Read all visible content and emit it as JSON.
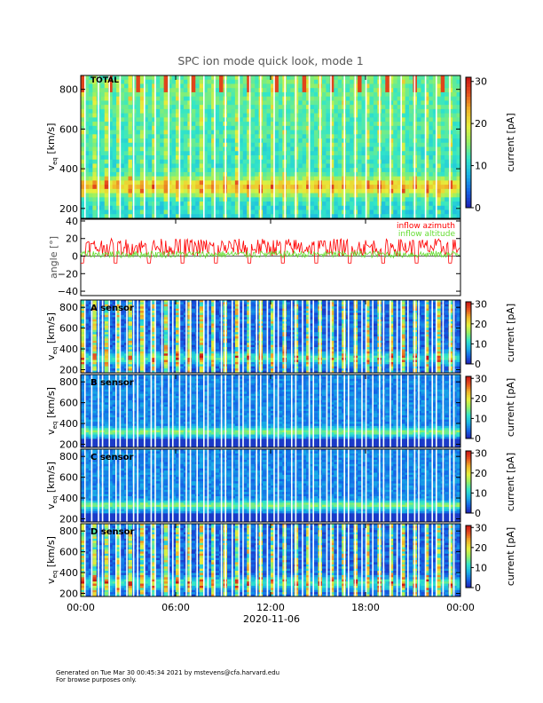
{
  "page": {
    "title": "SPC ion mode quick look, mode 1",
    "footer_line1": "Generated on Tue Mar 30 00:45:34 2021 by mstevens@cfa.harvard.edu",
    "footer_line2": "For browse purposes only."
  },
  "colorbar": {
    "label": "current [pA]",
    "ticks": [
      "0",
      "10",
      "20",
      "30"
    ],
    "tick_values": [
      0,
      10,
      20,
      30
    ],
    "range": [
      0,
      31
    ],
    "colors": [
      "#1f1fb4",
      "#1464e6",
      "#19b4e6",
      "#32e6c8",
      "#96f064",
      "#e6f03c",
      "#f0b428",
      "#e6501e",
      "#c81414"
    ]
  },
  "x_axis": {
    "ticks": [
      "00:00",
      "06:00",
      "12:00",
      "18:00",
      "00:00"
    ],
    "tick_hours": [
      0,
      6,
      12,
      18,
      24
    ],
    "date_label": "2020-11-06",
    "range_hours": [
      0,
      24
    ]
  },
  "chart_data": [
    {
      "type": "heatmap",
      "panel": "TOTAL",
      "ylabel": "v_eq [km/s]",
      "ylabel_main": "v",
      "ylabel_sub": "eq",
      "ylabel_unit": " [km/s]",
      "ylim": [
        150,
        870
      ],
      "yticks": [
        200,
        400,
        600,
        800
      ],
      "ytick_labels": [
        "200",
        "400",
        "600",
        "800"
      ],
      "beam_center_kms": 310,
      "peak_current_pA": 18,
      "colorbar_range": [
        0,
        31
      ]
    },
    {
      "type": "line",
      "ylabel": "angle [°]",
      "ylim": [
        -45,
        42
      ],
      "yticks": [
        -40,
        -20,
        0,
        20,
        40
      ],
      "ytick_labels": [
        "−40",
        "−20",
        "0",
        "20",
        "40"
      ],
      "series": [
        {
          "name": "inflow azimuth",
          "color": "#ff0000",
          "mean_deg": 10,
          "spread_deg": 10
        },
        {
          "name": "inflow altitude",
          "color": "#66dd33",
          "mean_deg": 2,
          "spread_deg": 4
        }
      ]
    },
    {
      "type": "heatmap",
      "panel": "A sensor",
      "ylabel": "v_eq [km/s]",
      "ylabel_main": "v",
      "ylabel_sub": "eq",
      "ylabel_unit": " [km/s]",
      "ylim": [
        170,
        870
      ],
      "yticks": [
        200,
        400,
        600,
        800
      ],
      "ytick_labels": [
        "200",
        "400",
        "600",
        "800"
      ],
      "beam_center_kms": 310,
      "colorbar_range": [
        0,
        31
      ]
    },
    {
      "type": "heatmap",
      "panel": "B sensor",
      "ylabel": "v_eq [km/s]",
      "ylabel_main": "v",
      "ylabel_sub": "eq",
      "ylabel_unit": " [km/s]",
      "ylim": [
        170,
        870
      ],
      "yticks": [
        200,
        400,
        600,
        800
      ],
      "ytick_labels": [
        "200",
        "400",
        "600",
        "800"
      ],
      "beam_center_kms": 320,
      "colorbar_range": [
        0,
        31
      ]
    },
    {
      "type": "heatmap",
      "panel": "C sensor",
      "ylabel": "v_eq [km/s]",
      "ylabel_main": "v",
      "ylabel_sub": "eq",
      "ylabel_unit": " [km/s]",
      "ylim": [
        170,
        870
      ],
      "yticks": [
        200,
        400,
        600,
        800
      ],
      "ytick_labels": [
        "200",
        "400",
        "600",
        "800"
      ],
      "beam_center_kms": 330,
      "colorbar_range": [
        0,
        31
      ]
    },
    {
      "type": "heatmap",
      "panel": "D sensor",
      "ylabel": "v_eq [km/s]",
      "ylabel_main": "v",
      "ylabel_sub": "eq",
      "ylabel_unit": " [km/s]",
      "ylim": [
        170,
        870
      ],
      "yticks": [
        200,
        400,
        600,
        800
      ],
      "ytick_labels": [
        "200",
        "400",
        "600",
        "800"
      ],
      "beam_center_kms": 300,
      "colorbar_range": [
        0,
        31
      ]
    }
  ]
}
